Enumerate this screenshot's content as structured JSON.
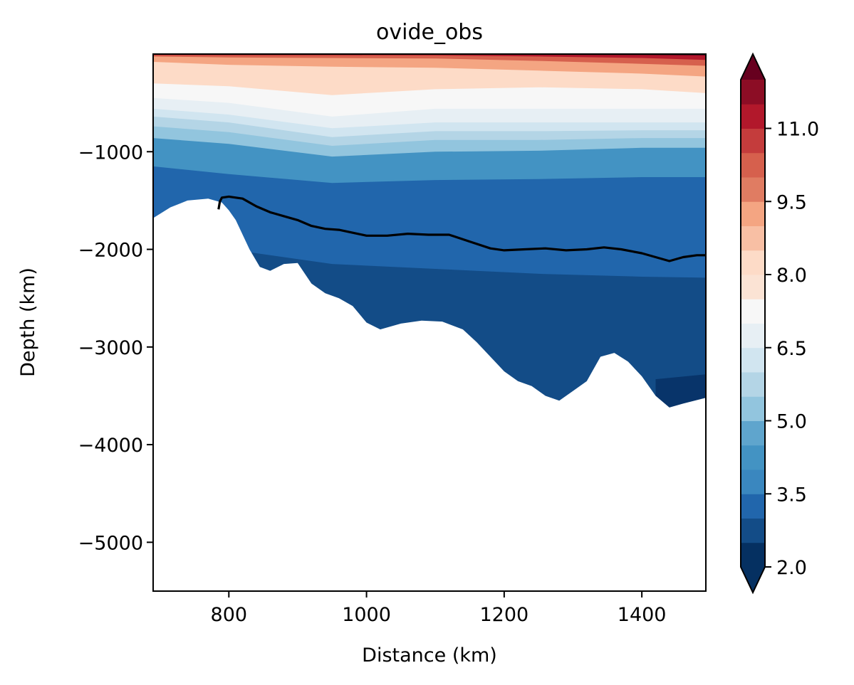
{
  "chart_data": {
    "type": "contourf",
    "title": "ovide_obs",
    "xlabel": "Distance (km)",
    "ylabel": "Depth (km)",
    "xlim": [
      690,
      1493
    ],
    "ylim": [
      -5500,
      0
    ],
    "xticks": [
      800,
      1000,
      1200,
      1400
    ],
    "yticks": [
      -1000,
      -2000,
      -3000,
      -4000,
      -5000
    ],
    "xtick_labels": [
      "800",
      "1000",
      "1200",
      "1400"
    ],
    "ytick_labels": [
      "−1000",
      "−2000",
      "−3000",
      "−4000",
      "−5000"
    ],
    "grid": false,
    "colormap": "RdBu_r",
    "colorbar": {
      "levels": [
        2.0,
        2.5,
        3.0,
        3.5,
        4.0,
        4.5,
        5.0,
        5.5,
        6.0,
        6.5,
        7.0,
        7.5,
        8.0,
        8.5,
        9.0,
        9.5,
        10.0,
        10.5,
        11.0,
        11.5
      ],
      "tick_values": [
        2.0,
        3.5,
        5.0,
        6.5,
        8.0,
        9.5,
        11.0
      ],
      "tick_labels": [
        "2.0",
        "3.5",
        "5.0",
        "6.5",
        "8.0",
        "9.5",
        "11.0"
      ],
      "colors": [
        "#053061",
        "#134c87",
        "#2166ac",
        "#3a87bf",
        "#4393c3",
        "#5fa5cd",
        "#92c5de",
        "#b4d5e6",
        "#d1e5f0",
        "#e7eff4",
        "#f7f7f7",
        "#fbe3d4",
        "#fddbc7",
        "#f8bfa4",
        "#f4a582",
        "#e07c62",
        "#d6604d",
        "#c43c3c",
        "#b2182b",
        "#8c0d25"
      ],
      "extend": "both",
      "under_color": "#053061",
      "over_color": "#67001f"
    },
    "field_bands": [
      {
        "level": 11.5,
        "color": "#67001f",
        "depths": [
          -5,
          -5,
          -5,
          -5,
          -8,
          -10,
          -15
        ]
      },
      {
        "level": 10.5,
        "color": "#b2182b",
        "depths": [
          -10,
          -12,
          -12,
          -14,
          -25,
          -40,
          -60
        ]
      },
      {
        "level": 9.5,
        "color": "#d6604d",
        "depths": [
          -25,
          -35,
          -40,
          -45,
          -70,
          -100,
          -120
        ]
      },
      {
        "level": 8.5,
        "color": "#f4a582",
        "depths": [
          -80,
          -110,
          -130,
          -140,
          -170,
          -200,
          -230
        ]
      },
      {
        "level": 7.5,
        "color": "#fddbc7",
        "depths": [
          -300,
          -330,
          -420,
          -360,
          -340,
          -360,
          -400
        ]
      },
      {
        "level": 7.0,
        "color": "#f7f7f7",
        "depths": [
          -450,
          -500,
          -640,
          -560,
          -560,
          -560,
          -560
        ]
      },
      {
        "level": 6.5,
        "color": "#e7eff4",
        "depths": [
          -560,
          -620,
          -760,
          -700,
          -700,
          -700,
          -700
        ]
      },
      {
        "level": 6.0,
        "color": "#d1e5f0",
        "depths": [
          -640,
          -700,
          -850,
          -790,
          -790,
          -780,
          -780
        ]
      },
      {
        "level": 5.5,
        "color": "#b4d5e6",
        "depths": [
          -740,
          -800,
          -940,
          -880,
          -880,
          -860,
          -860
        ]
      },
      {
        "level": 5.0,
        "color": "#92c5de",
        "depths": [
          -860,
          -920,
          -1050,
          -1000,
          -990,
          -960,
          -960
        ]
      },
      {
        "level": 4.5,
        "color": "#4393c3",
        "depths": [
          -1150,
          -1230,
          -1320,
          -1290,
          -1280,
          -1260,
          -1260
        ]
      },
      {
        "level": 3.5,
        "color": "#2166ac",
        "depths": [
          -1900,
          -2000,
          -2150,
          -2200,
          -2250,
          -2280,
          -2290
        ]
      },
      {
        "level": 3.0,
        "color": "#134c87",
        "depths": [
          -5000,
          -5000,
          -5000,
          -5000,
          -3500,
          -3350,
          -3300
        ]
      }
    ],
    "field_band_x": [
      690,
      800,
      950,
      1100,
      1250,
      1400,
      1493
    ],
    "bottom_bathymetry": {
      "x": [
        690,
        715,
        740,
        770,
        790,
        800,
        810,
        830,
        845,
        860,
        880,
        900,
        920,
        940,
        960,
        980,
        1000,
        1020,
        1050,
        1080,
        1110,
        1140,
        1160,
        1180,
        1200,
        1220,
        1240,
        1260,
        1280,
        1300,
        1320,
        1340,
        1360,
        1380,
        1400,
        1420,
        1440,
        1460,
        1493
      ],
      "y": [
        -1680,
        -1570,
        -1500,
        -1480,
        -1520,
        -1600,
        -1700,
        -2000,
        -2180,
        -2220,
        -2150,
        -2140,
        -2350,
        -2450,
        -2500,
        -2580,
        -2750,
        -2820,
        -2760,
        -2730,
        -2740,
        -2820,
        -2950,
        -3100,
        -3250,
        -3350,
        -3400,
        -3500,
        -3550,
        -3450,
        -3350,
        -3100,
        -3060,
        -3150,
        -3300,
        -3500,
        -3620,
        -3580,
        -3520
      ]
    },
    "isoline": {
      "color": "#000000",
      "x": [
        785,
        787,
        790,
        800,
        820,
        840,
        860,
        880,
        900,
        920,
        940,
        960,
        980,
        1000,
        1030,
        1060,
        1090,
        1120,
        1150,
        1180,
        1200,
        1230,
        1260,
        1290,
        1320,
        1345,
        1370,
        1400,
        1420,
        1440,
        1460,
        1480,
        1493
      ],
      "y": [
        -1590,
        -1510,
        -1470,
        -1460,
        -1480,
        -1560,
        -1620,
        -1660,
        -1700,
        -1760,
        -1790,
        -1800,
        -1830,
        -1860,
        -1860,
        -1840,
        -1850,
        -1850,
        -1920,
        -1990,
        -2010,
        -2000,
        -1990,
        -2010,
        -2000,
        -1980,
        -2000,
        -2040,
        -2080,
        -2120,
        -2080,
        -2060,
        -2060
      ]
    }
  }
}
